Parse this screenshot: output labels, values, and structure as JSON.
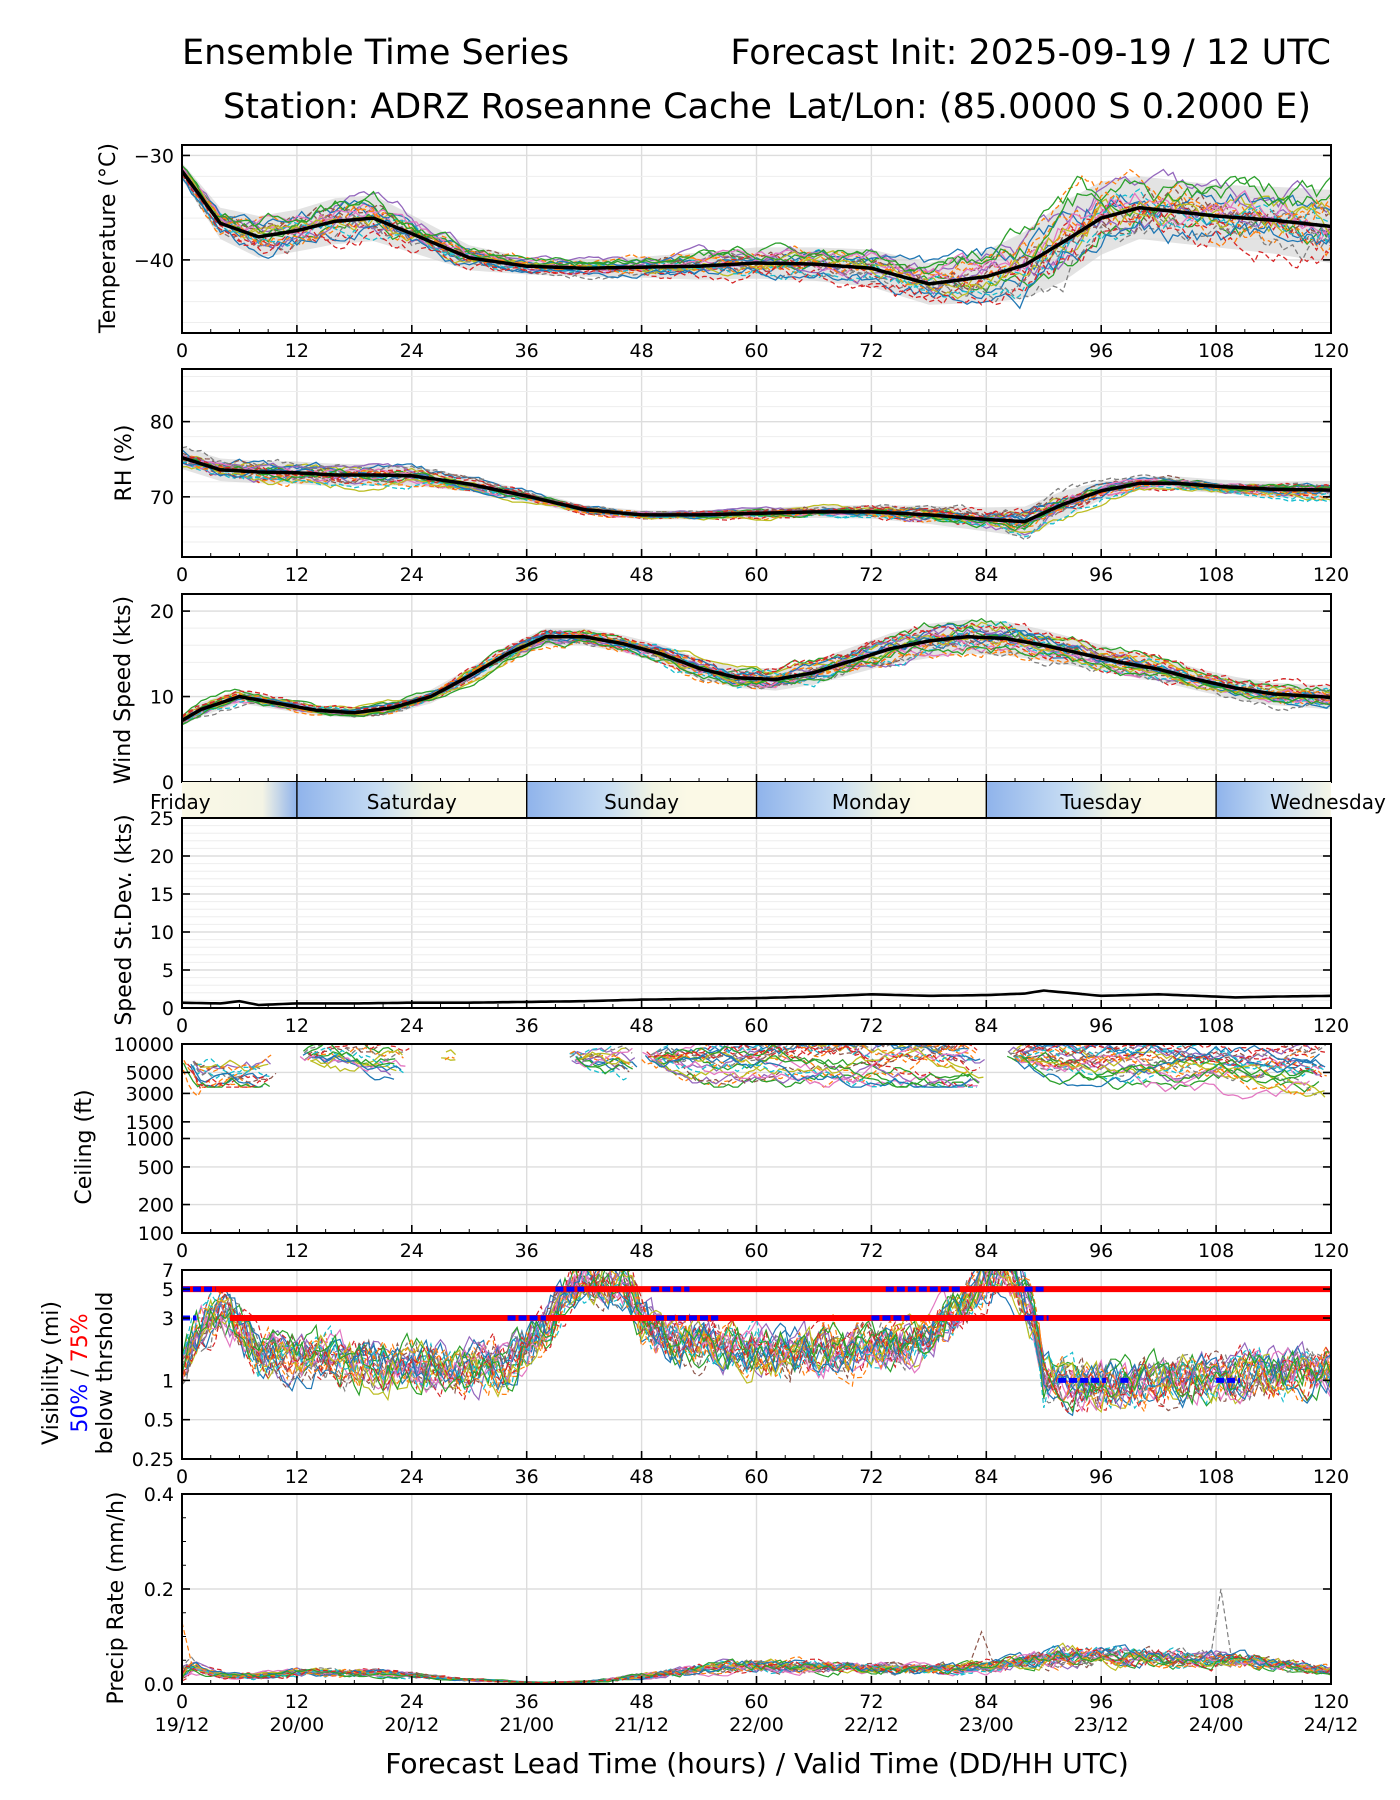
{
  "title": {
    "left": "Ensemble Time Series",
    "right": "Forecast Init: 2025-09-19 / 12 UTC",
    "station": "Station: ADRZ Roseanne Cache",
    "latlon": "Lat/Lon: (85.0000 S 0.2000 E)"
  },
  "xlabel": "Forecast Lead Time (hours) / Valid Time (DD/HH UTC)",
  "lead_ticks": [
    "0",
    "12",
    "24",
    "36",
    "48",
    "60",
    "72",
    "84",
    "96",
    "108",
    "120"
  ],
  "valid_ticks": [
    "19/12",
    "20/00",
    "20/12",
    "21/00",
    "21/12",
    "22/00",
    "22/12",
    "23/00",
    "23/12",
    "24/00",
    "24/12"
  ],
  "day_labels": [
    "Friday",
    "Saturday",
    "Sunday",
    "Monday",
    "Tuesday",
    "Wednesday"
  ],
  "colors": {
    "mean": "#000000",
    "threshold_75": "#ff0000",
    "threshold_50": "#0000ff",
    "members": [
      "#1f77b4",
      "#ff7f0e",
      "#2ca02c",
      "#d62728",
      "#9467bd",
      "#8c564b",
      "#e377c2",
      "#7f7f7f",
      "#bcbd22",
      "#17becf"
    ]
  },
  "chart_data": [
    {
      "type": "line",
      "id": "temp",
      "ylabel": "Temperature (°C)",
      "ylim": [
        -47,
        -29
      ],
      "yticks": [
        -30,
        -40
      ],
      "x": [
        0,
        4,
        8,
        12,
        16,
        20,
        24,
        30,
        36,
        42,
        48,
        54,
        60,
        66,
        72,
        78,
        84,
        88,
        92,
        96,
        100,
        104,
        108,
        114,
        120
      ],
      "mean": [
        -31.5,
        -36.5,
        -37.8,
        -37.2,
        -36.3,
        -36.0,
        -37.5,
        -39.8,
        -40.6,
        -40.8,
        -40.7,
        -40.6,
        -40.3,
        -40.4,
        -40.8,
        -42.3,
        -41.6,
        -40.5,
        -38.3,
        -36.0,
        -35.0,
        -35.4,
        -35.8,
        -36.2,
        -36.8
      ],
      "spread": [
        0.8,
        1.5,
        2.0,
        2.0,
        2.2,
        2.2,
        1.8,
        1.2,
        0.8,
        0.8,
        1.0,
        1.3,
        1.5,
        1.6,
        1.8,
        2.0,
        2.5,
        3.2,
        3.8,
        3.5,
        3.0,
        3.0,
        3.0,
        3.2,
        3.5
      ],
      "members": 24
    },
    {
      "type": "line",
      "id": "rh",
      "ylabel": "RH (%)",
      "ylim": [
        62,
        87
      ],
      "yticks": [
        70,
        80
      ],
      "x": [
        0,
        4,
        8,
        12,
        16,
        20,
        24,
        30,
        36,
        42,
        48,
        54,
        60,
        66,
        72,
        78,
        84,
        88,
        92,
        96,
        100,
        104,
        108,
        114,
        120
      ],
      "mean": [
        75.2,
        73.6,
        73.3,
        73.2,
        72.9,
        72.9,
        72.8,
        71.7,
        70.1,
        68.3,
        67.6,
        67.6,
        67.8,
        68.0,
        68.0,
        67.6,
        67.0,
        66.7,
        69.0,
        70.8,
        71.8,
        71.8,
        71.4,
        71.0,
        70.9
      ],
      "spread": [
        1.5,
        1.5,
        1.5,
        1.5,
        1.5,
        1.4,
        1.3,
        1.0,
        0.8,
        0.6,
        0.6,
        0.6,
        0.7,
        0.8,
        0.9,
        1.2,
        1.6,
        2.0,
        1.8,
        1.2,
        0.9,
        0.9,
        0.9,
        1.0,
        1.2
      ],
      "members": 24
    },
    {
      "type": "line",
      "id": "wind",
      "ylabel": "Wind Speed (kts)",
      "ylim": [
        0,
        22
      ],
      "yticks": [
        0,
        10,
        20
      ],
      "x": [
        0,
        2,
        6,
        10,
        14,
        18,
        22,
        26,
        30,
        34,
        38,
        42,
        46,
        50,
        54,
        58,
        62,
        66,
        70,
        74,
        78,
        82,
        86,
        90,
        94,
        98,
        102,
        106,
        110,
        114,
        120
      ],
      "mean": [
        7.2,
        8.5,
        10.0,
        9.2,
        8.4,
        8.1,
        8.7,
        10.0,
        12.4,
        15.0,
        17.0,
        17.0,
        16.2,
        15.0,
        13.3,
        12.2,
        12.0,
        12.8,
        14.2,
        15.6,
        16.5,
        17.0,
        16.8,
        16.0,
        15.0,
        14.0,
        13.2,
        12.0,
        11.0,
        10.3,
        9.9
      ],
      "spread": [
        0.6,
        0.8,
        0.8,
        0.7,
        0.6,
        0.6,
        0.7,
        0.8,
        0.9,
        1.0,
        1.0,
        1.0,
        1.0,
        1.1,
        1.2,
        1.2,
        1.3,
        1.4,
        1.6,
        1.8,
        2.0,
        2.0,
        2.0,
        1.8,
        1.6,
        1.5,
        1.4,
        1.3,
        1.3,
        1.3,
        1.4
      ],
      "members": 24
    },
    {
      "type": "line",
      "id": "sd",
      "ylabel": "Speed St.Dev. (kts)",
      "ylim": [
        0,
        25
      ],
      "yticks": [
        0,
        5,
        10,
        15,
        20,
        25
      ],
      "x": [
        0,
        4,
        6,
        8,
        12,
        18,
        24,
        30,
        36,
        42,
        48,
        54,
        60,
        66,
        72,
        78,
        84,
        88,
        90,
        96,
        102,
        106,
        110,
        114,
        120
      ],
      "mean": [
        0.7,
        0.6,
        0.9,
        0.4,
        0.6,
        0.6,
        0.7,
        0.7,
        0.8,
        0.9,
        1.1,
        1.2,
        1.3,
        1.5,
        1.8,
        1.6,
        1.7,
        1.9,
        2.3,
        1.6,
        1.8,
        1.6,
        1.4,
        1.5,
        1.6
      ]
    },
    {
      "type": "line",
      "id": "ceiling",
      "ylabel": "Ceiling (ft)",
      "scale": "log",
      "ylim": [
        100,
        10000
      ],
      "yticks": [
        100,
        200,
        500,
        1000,
        1500,
        3000,
        5000,
        10000
      ],
      "ytick_labels": [
        "100",
        "200",
        "500",
        "1000",
        "1500",
        "3000",
        "5000",
        "10000"
      ],
      "member_range": [
        2500,
        10000
      ],
      "members": 24
    },
    {
      "type": "line",
      "id": "vis",
      "ylabel": "Visibility (mi)",
      "ylabel2_blue": "50%",
      "ylabel2_sep": " / ",
      "ylabel2_red": "75%",
      "ylabel3": "below thrshold",
      "scale": "log",
      "ylim": [
        0.25,
        7
      ],
      "yticks": [
        0.25,
        0.5,
        1,
        3,
        5,
        7
      ],
      "ytick_labels": [
        "0.25",
        "0.5",
        "1",
        "3",
        "5",
        "7"
      ],
      "member_range": [
        0.5,
        7
      ],
      "members": 24,
      "threshold_75": [
        {
          "level": 5,
          "from": 0,
          "to": 120
        },
        {
          "level": 3,
          "from": 5,
          "to": 120
        }
      ],
      "threshold_50": [
        {
          "level": 5,
          "from": 0,
          "to": 3.5
        },
        {
          "level": 5,
          "from": 39,
          "to": 42
        },
        {
          "level": 5,
          "from": 49,
          "to": 53
        },
        {
          "level": 5,
          "from": 73.5,
          "to": 81.5
        },
        {
          "level": 5,
          "from": 88,
          "to": 90
        },
        {
          "level": 3,
          "from": 0,
          "to": 1.5
        },
        {
          "level": 3,
          "from": 34,
          "to": 38
        },
        {
          "level": 3,
          "from": 49.5,
          "to": 56
        },
        {
          "level": 3,
          "from": 72,
          "to": 76
        },
        {
          "level": 3,
          "from": 88,
          "to": 90.5
        },
        {
          "level": 1,
          "from": 91.5,
          "to": 96.5
        },
        {
          "level": 1,
          "from": 98,
          "to": 99
        },
        {
          "level": 1,
          "from": 108,
          "to": 110.5
        }
      ]
    },
    {
      "type": "line",
      "id": "precip",
      "ylabel": "Precip Rate (mm/h)",
      "ylim": [
        0,
        0.4
      ],
      "yticks": [
        0.0,
        0.2,
        0.4
      ],
      "ytick_labels": [
        "0.0",
        "0.2",
        "0.4"
      ],
      "member_range": [
        0,
        0.12
      ],
      "peak_values": {
        "x": 108.5,
        "y": 0.2
      },
      "members": 24
    }
  ]
}
